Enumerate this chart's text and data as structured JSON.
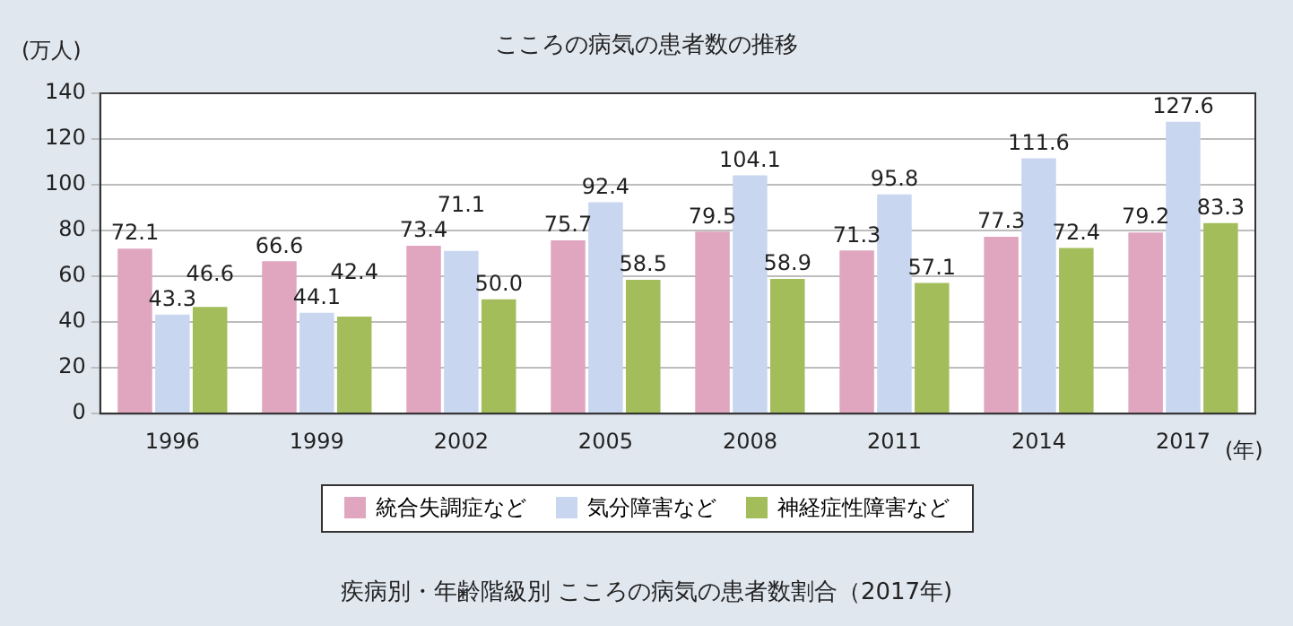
{
  "chart_data": {
    "type": "bar",
    "title": "こころの病気の患者数の推移",
    "ylabel": "(万人)",
    "xlabel": "(年)",
    "categories": [
      "1996",
      "1999",
      "2002",
      "2005",
      "2008",
      "2011",
      "2014",
      "2017"
    ],
    "series": [
      {
        "name": "統合失調症など",
        "color": "#e0a6c0",
        "values": [
          72.1,
          66.6,
          73.4,
          75.7,
          79.5,
          71.3,
          77.3,
          79.2
        ],
        "value_labels": [
          "72.1",
          "66.6",
          "73.4",
          "75.7",
          "79.5",
          "71.3",
          "77.3",
          "79.2"
        ]
      },
      {
        "name": "気分障害など",
        "color": "#c9d6ef",
        "values": [
          43.3,
          44.1,
          71.1,
          92.4,
          104.1,
          95.8,
          111.6,
          127.6
        ],
        "value_labels": [
          "43.3",
          "44.1",
          "71.1",
          "92.4",
          "104.1",
          "95.8",
          "111.6",
          "127.6"
        ]
      },
      {
        "name": "神経症性障害など",
        "color": "#a3bd5a",
        "values": [
          46.6,
          42.4,
          50.0,
          58.5,
          58.9,
          57.1,
          72.4,
          83.3
        ],
        "value_labels": [
          "46.6",
          "42.4",
          "50.0",
          "58.5",
          "58.9",
          "57.1",
          "72.4",
          "83.3"
        ]
      }
    ],
    "ylim": [
      0,
      140
    ],
    "yticks": [
      0,
      20,
      40,
      60,
      80,
      100,
      120,
      140
    ],
    "grid": "y",
    "legend": "bottom",
    "annotations": [
      "疾病別・年齢階級別 こころの病気の患者数割合（2017年)"
    ]
  }
}
